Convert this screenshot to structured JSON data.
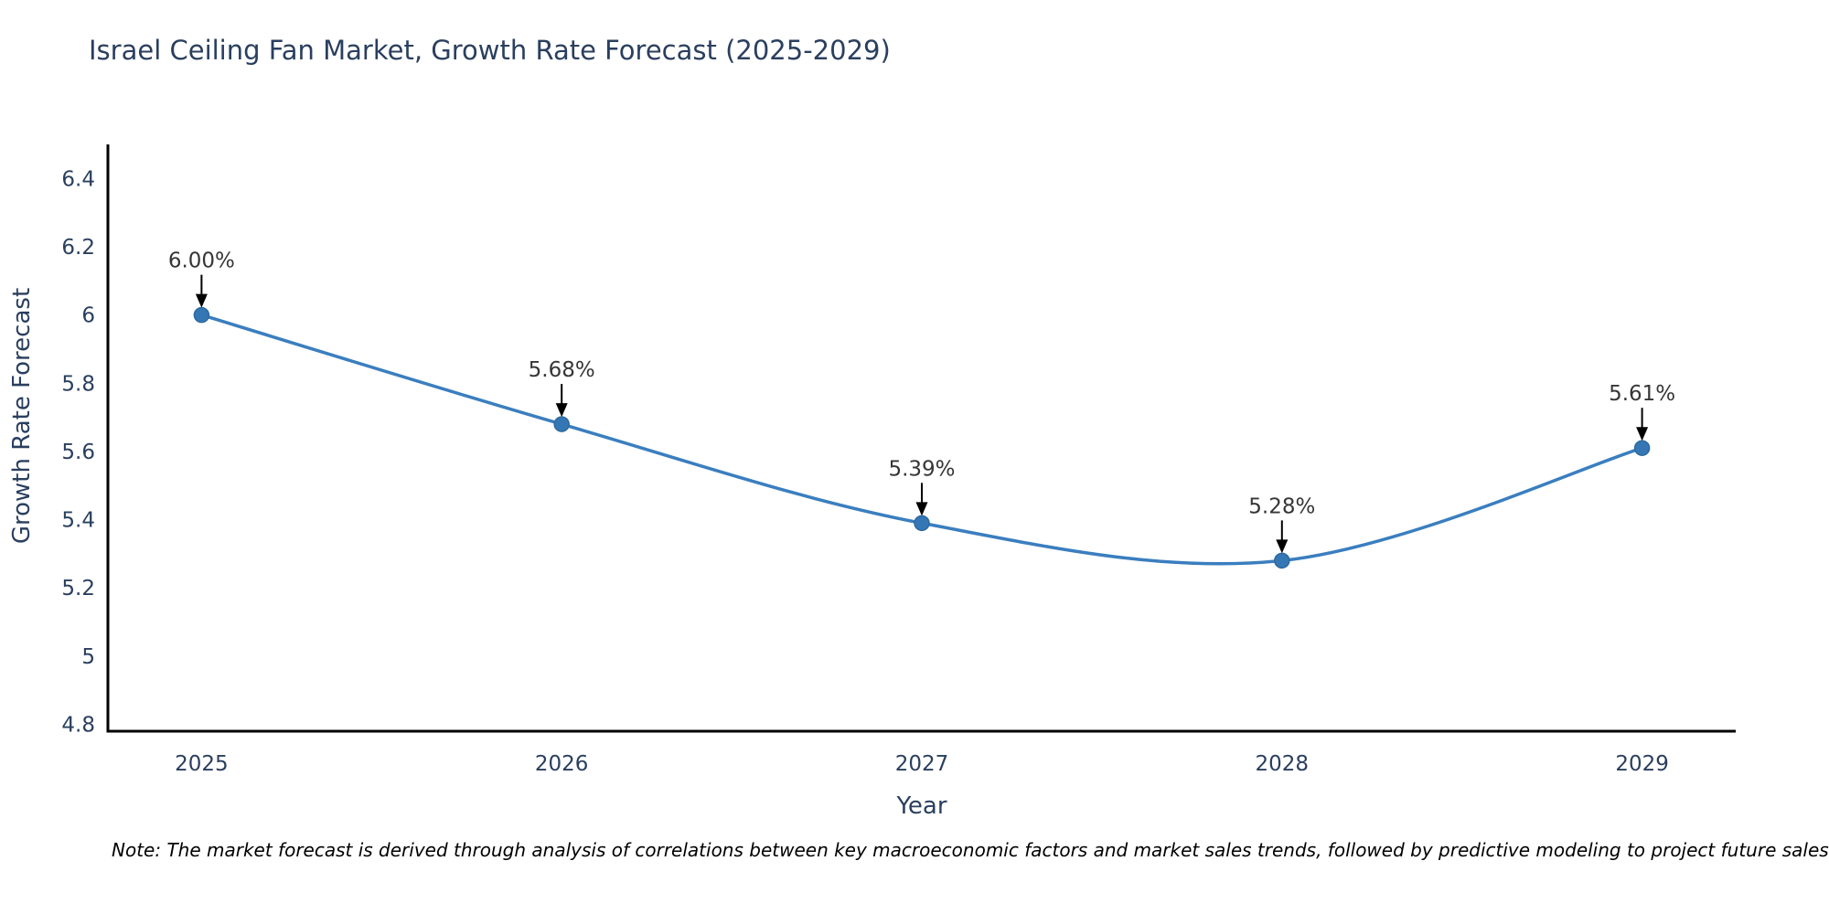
{
  "page": {
    "background_color": "#ffffff"
  },
  "chart": {
    "note": "Note: The market forecast is derived through analysis of correlations between key macroeconomic factors and market sales trends, followed by predictive modeling to project future sales"
  },
  "chart_data": {
    "type": "line",
    "title": "Israel Ceiling Fan Market, Growth Rate Forecast (2025-2029)",
    "xlabel": "Year",
    "ylabel": "Growth Rate Forecast",
    "x": [
      2025,
      2026,
      2027,
      2028,
      2029
    ],
    "series": [
      {
        "name": "Growth Rate Forecast",
        "values": [
          6.0,
          5.68,
          5.39,
          5.28,
          5.61
        ]
      }
    ],
    "point_labels": [
      "6.00%",
      "5.68%",
      "5.39%",
      "5.28%",
      "5.61%"
    ],
    "xtick_labels": [
      "2025",
      "2026",
      "2027",
      "2028",
      "2029"
    ],
    "yticks": [
      4.8,
      5.0,
      5.2,
      5.4,
      5.6,
      5.8,
      6.0,
      6.2,
      6.4
    ],
    "ytick_labels": [
      "4.8",
      "5",
      "5.2",
      "5.4",
      "5.6",
      "5.8",
      "6",
      "6.2",
      "6.4"
    ],
    "ylim": [
      4.78,
      6.5
    ],
    "xlim": [
      2024.74,
      2029.26
    ],
    "grid": false,
    "legend_position": "none",
    "line_shape": "spline",
    "colors": {
      "line": "#3a7ebf",
      "marker_fill": "#3577b4",
      "marker_edge": "#2d699f",
      "axis_line": "#000000",
      "axis_text": "#2a3f5f",
      "annotation_text": "#363636",
      "arrow": "#000000"
    }
  }
}
